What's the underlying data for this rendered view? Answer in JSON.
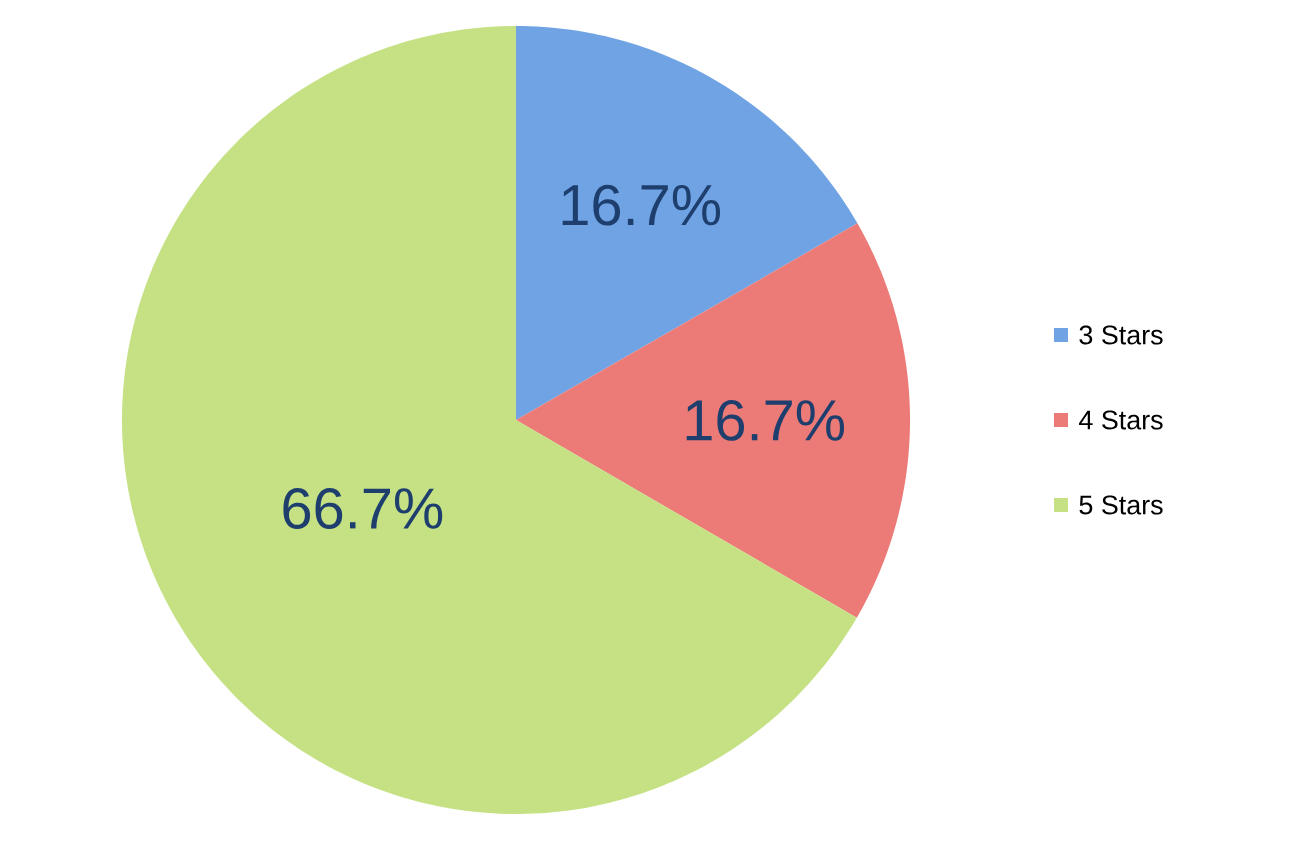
{
  "chart_data": {
    "type": "pie",
    "categories": [
      "3 Stars",
      "4 Stars",
      "5 Stars"
    ],
    "values": [
      16.7,
      16.7,
      66.7
    ],
    "colors": [
      "#6fa3e4",
      "#ec7a76",
      "#c5e184"
    ],
    "value_labels": [
      "16.7%",
      "16.7%",
      "66.7%"
    ],
    "legend": "right"
  }
}
